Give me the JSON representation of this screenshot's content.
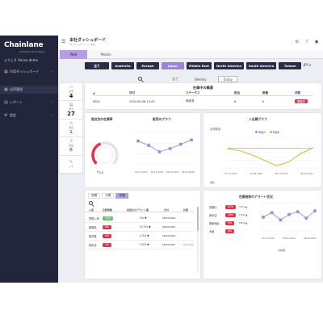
{
  "app": {
    "name": "Chainlane",
    "tagline": "Semantic BI Analysis",
    "welcome": "ようこそ Sensa demo"
  },
  "colors": {
    "sidebar": "#23263a",
    "accent": "#9c82d9",
    "navy": "#2a2d45",
    "red": "#d9374b",
    "green": "#6cc070",
    "gold": "#d7b93a",
    "purple_line": "#a58ad8"
  },
  "sidebar": {
    "items": [
      {
        "label": "S4Dダッシュボード",
        "icon": "dashboard-icon",
        "expandable": true,
        "selected": false
      },
      {
        "label": "出荷管理",
        "icon": "box-icon",
        "expandable": false,
        "selected": true
      },
      {
        "label": "レポート",
        "icon": "chart-icon",
        "expandable": true,
        "selected": false
      },
      {
        "label": "設定",
        "icon": "gear-icon",
        "expandable": true,
        "selected": false
      }
    ]
  },
  "header": {
    "title": "本社ダッシュボード",
    "subtitle": "ダッシュボード ＞ 本社"
  },
  "header_icons": [
    "settings-icon",
    "help-icon",
    "user-icon"
  ],
  "tabs": [
    {
      "label": "Web",
      "active": true
    },
    {
      "label": "Mobile",
      "active": false
    }
  ],
  "regions": [
    {
      "label": "全て",
      "active": false
    },
    {
      "label": "Australia",
      "active": false
    },
    {
      "label": "Europe",
      "active": false
    },
    {
      "label": "Japan",
      "active": true
    },
    {
      "label": "Middle East",
      "active": false
    },
    {
      "label": "North America",
      "active": false
    },
    {
      "label": "South America",
      "active": false
    },
    {
      "label": "Taiwan",
      "active": false
    }
  ],
  "currency": {
    "value": "JPY"
  },
  "periods": [
    {
      "label": "全て",
      "active": false
    },
    {
      "label": "Weekly",
      "active": false
    },
    {
      "label": "Today",
      "active": true
    }
  ],
  "kpis": [
    {
      "label": "出荷",
      "value": "4",
      "icon": "truck-icon",
      "alert": false
    },
    {
      "label": "受注",
      "value": "27",
      "icon": "cart-icon",
      "alert": false
    },
    {
      "label": "遅延",
      "value": "1",
      "icon": "alert-icon",
      "alert": true
    },
    {
      "label": "返品",
      "value": "0",
      "icon": "return-icon",
      "alert": true
    },
    {
      "label": "メモ",
      "value": "",
      "icon": "note-icon",
      "alert": false
    }
  ],
  "summary": {
    "title": "在庫中の概要",
    "columns": [
      "#",
      "日付",
      "ステータス",
      "担当",
      "数量",
      "状態"
    ],
    "rows": [
      [
        "EB01",
        "2020-08-06 13:43",
        "承認済",
        "8",
        "0",
        "要確認"
      ]
    ]
  },
  "gauge_card": {
    "title": "拠点別の在庫率",
    "gauge_fraction": 0.42,
    "gauge_label": "今月",
    "chart_title": "販売のグラフ",
    "values": [
      62,
      58,
      52,
      55,
      59,
      63
    ],
    "x_labels": [
      "20.11.2021",
      "16.12.2021",
      "18.02.2022",
      "06.03.2022"
    ]
  },
  "trend_card": {
    "title": "入出庫グラフ",
    "ylabel": "在庫数量",
    "footer": "期間",
    "series": [
      {
        "name": "商品A",
        "values": [
          52,
          52,
          51,
          52,
          52,
          52,
          51,
          52
        ]
      },
      {
        "name": "商品B",
        "values": [
          50,
          45,
          34,
          20,
          6,
          16,
          38,
          53
        ]
      }
    ],
    "x_labels": [
      "20.11.2021",
      "18.06.2021",
      "06.10.2021",
      "08.10.2021"
    ]
  },
  "alerts_table": {
    "tabs": [
      {
        "label": "週間",
        "active": false
      },
      {
        "label": "月間",
        "active": false
      },
      {
        "label": "年間",
        "active": true
      }
    ],
    "columns": [
      "入荷",
      "比較情報",
      "前回比のアラート量",
      "日付",
      "状態"
    ],
    "rows": [
      {
        "name": "週間入荷",
        "badge": "12%",
        "badge_color": "#6cc070",
        "change": "3% ▼",
        "date": "08/10/2020",
        "status": ""
      },
      {
        "name": "新規品",
        "badge": "8%",
        "badge_color": "#d9374b",
        "change": "11.5% ▼",
        "date": "08/10/2020",
        "status": ""
      },
      {
        "name": "総件数",
        "badge": "0%",
        "badge_color": "#d9374b",
        "change": "4.3% ▼",
        "date": "08/10/2020",
        "status": ""
      },
      {
        "name": "東京店",
        "badge": "1%",
        "badge_color": "#d9374b",
        "change": "5.0% ▼",
        "date": "08/10/2020",
        "status": "在庫の状況"
      }
    ]
  },
  "alert_status": {
    "title": "在庫推移のアラート状況",
    "footer": "対前期",
    "rows": [
      {
        "label": "前期比",
        "badge": "62%",
        "change": "3.3% ▲"
      },
      {
        "label": "東京店",
        "badge": "18%",
        "change": "1.9% ▲"
      },
      {
        "label": "関東地区",
        "badge": "9%",
        "change": "0.8% ▲"
      },
      {
        "label": "大阪",
        "badge": "4%",
        "change": ""
      }
    ],
    "values": [
      55,
      60,
      52,
      58,
      61,
      54,
      62
    ],
    "x_labels": [
      "20.11.2021",
      "18.06.2021",
      "06.10.2021"
    ]
  }
}
